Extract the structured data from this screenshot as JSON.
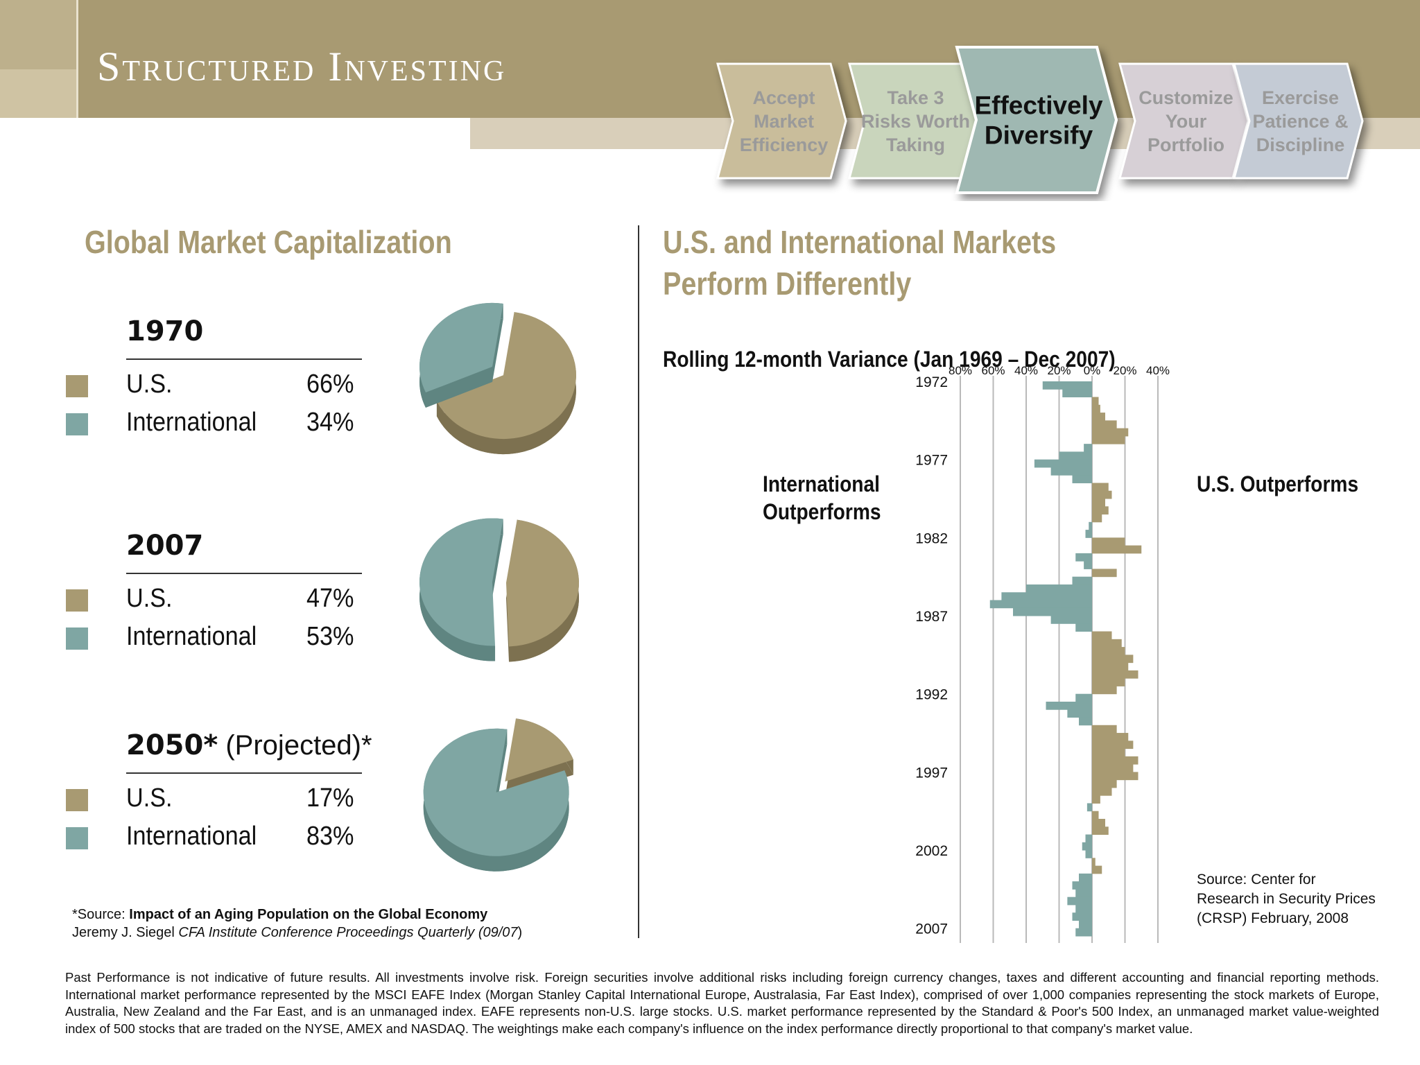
{
  "header": {
    "title": "Structured Investing",
    "steps": [
      {
        "lines": [
          "Accept",
          "Market",
          "Efficiency"
        ],
        "active": false,
        "color": "#c9bd9b"
      },
      {
        "lines": [
          "Take 3",
          "Risks Worth",
          "Taking"
        ],
        "active": false,
        "color": "#c9d5bc"
      },
      {
        "lines": [
          "Effectively",
          "Diversify"
        ],
        "active": true,
        "color": "#9fb8b2"
      },
      {
        "lines": [
          "Customize",
          "Your",
          "Portfolio"
        ],
        "active": false,
        "color": "#d7d0d6"
      },
      {
        "lines": [
          "Exercise",
          "Patience &",
          "Discipline"
        ],
        "active": false,
        "color": "#c4cbd5"
      }
    ]
  },
  "left": {
    "heading": "Global Market Capitalization",
    "colors": {
      "us": "#a89a72",
      "international": "#7fa6a3"
    },
    "blocks": [
      {
        "year": "1970",
        "projected": "",
        "rows": [
          {
            "label": "U.S.",
            "pct": "66%"
          },
          {
            "label": "International",
            "pct": "34%"
          }
        ]
      },
      {
        "year": "2007",
        "projected": "",
        "rows": [
          {
            "label": "U.S.",
            "pct": "47%"
          },
          {
            "label": "International",
            "pct": "53%"
          }
        ]
      },
      {
        "year": "2050*",
        "projected": " (Projected)*",
        "rows": [
          {
            "label": "U.S.",
            "pct": "17%"
          },
          {
            "label": "International",
            "pct": "83%"
          }
        ]
      }
    ],
    "source_prefix": "*Source: ",
    "source_title": "Impact of an Aging Population on the Global Economy",
    "source_author": "Jeremy J. Siegel ",
    "source_journal": "CFA Institute Conference Proceedings Quarterly (09/07",
    "source_close": ")"
  },
  "right": {
    "heading_line1": "U.S. and International Markets",
    "heading_line2": "Perform Differently",
    "subtitle": "Rolling 12-month Variance (Jan 1969 – Dec 2007)",
    "left_label_line1": "International",
    "left_label_line2": "Outperforms",
    "right_label": "U.S. Outperforms",
    "source_lines": [
      "Source: Center for",
      "Research in Security Prices",
      "(CRSP) February, 2008"
    ]
  },
  "pie_data": [
    {
      "name": "1970",
      "us": 66,
      "international": 34
    },
    {
      "name": "2007",
      "us": 47,
      "international": 53
    },
    {
      "name": "2050*",
      "us": 17,
      "international": 83
    }
  ],
  "chart_data": {
    "type": "bar",
    "orientation": "horizontal",
    "title": "Rolling 12-month Variance (Jan 1969 – Dec 2007)",
    "x_ticks": [
      "80%",
      "60%",
      "40%",
      "20%",
      "0%",
      "20%",
      "40%"
    ],
    "xlim": [
      -80,
      40
    ],
    "y_ticks": [
      "1972",
      "1977",
      "1982",
      "1987",
      "1992",
      "1997",
      "2002",
      "2007"
    ],
    "ylim": [
      1972,
      2007.5
    ],
    "grid": true,
    "colors": {
      "positive": "#a89a72",
      "negative": "#7fa6a3"
    },
    "series_note": "Semiannual approximations read from the chart; positive = U.S. outperforms, negative = International outperforms",
    "x": [
      1972.0,
      1972.5,
      1973.0,
      1973.5,
      1974.0,
      1974.5,
      1975.0,
      1975.5,
      1976.0,
      1976.5,
      1977.0,
      1977.5,
      1978.0,
      1978.5,
      1979.0,
      1979.5,
      1980.0,
      1980.5,
      1981.0,
      1981.5,
      1982.0,
      1982.5,
      1983.0,
      1983.5,
      1984.0,
      1984.5,
      1985.0,
      1985.5,
      1986.0,
      1986.5,
      1987.0,
      1987.5,
      1988.0,
      1988.5,
      1989.0,
      1989.5,
      1990.0,
      1990.5,
      1991.0,
      1991.5,
      1992.0,
      1992.5,
      1993.0,
      1993.5,
      1994.0,
      1994.5,
      1995.0,
      1995.5,
      1996.0,
      1996.5,
      1997.0,
      1997.5,
      1998.0,
      1998.5,
      1999.0,
      1999.5,
      2000.0,
      2000.5,
      2001.0,
      2001.5,
      2002.0,
      2002.5,
      2003.0,
      2003.5,
      2004.0,
      2004.5,
      2005.0,
      2005.5,
      2006.0,
      2006.5,
      2007.0
    ],
    "values": [
      -30,
      -18,
      4,
      5,
      8,
      15,
      22,
      20,
      -5,
      -20,
      -35,
      -25,
      -12,
      10,
      12,
      8,
      10,
      6,
      -2,
      -4,
      20,
      30,
      -10,
      -5,
      15,
      -12,
      -40,
      -55,
      -62,
      -48,
      -25,
      -10,
      12,
      18,
      20,
      25,
      22,
      28,
      20,
      15,
      -10,
      -28,
      -15,
      -8,
      15,
      22,
      25,
      20,
      28,
      25,
      28,
      15,
      12,
      5,
      -3,
      4,
      8,
      10,
      -4,
      -6,
      -4,
      2,
      6,
      -8,
      -12,
      -10,
      -15,
      -10,
      -12,
      -8,
      -10
    ]
  },
  "disclaimer": "Past Performance is not indicative of future results. All investments involve risk. Foreign securities involve additional risks including foreign currency changes, taxes and different accounting and financial reporting methods. International market performance represented by the MSCI EAFE Index (Morgan Stanley Capital International Europe, Australasia, Far East Index), comprised of over 1,000 companies representing the stock markets of Europe, Australia, New Zealand and the Far East, and is an unmanaged index. EAFE represents non-U.S. large stocks. U.S. market performance represented by the Standard & Poor's 500 Index, an unmanaged market value-weighted index of 500 stocks that are traded on the NYSE, AMEX and NASDAQ. The weightings make each company's influence on the index performance directly proportional to that company's market value."
}
